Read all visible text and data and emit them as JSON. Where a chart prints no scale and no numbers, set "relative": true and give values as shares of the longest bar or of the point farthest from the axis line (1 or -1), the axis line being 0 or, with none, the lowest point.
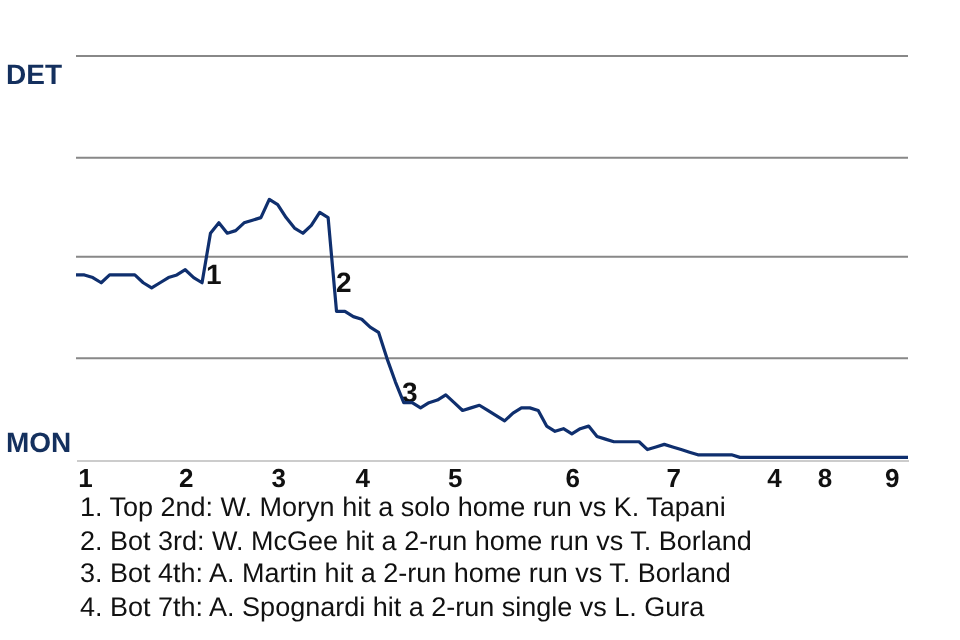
{
  "chart_data": {
    "type": "line",
    "relative": true,
    "categories": [
      null,
      "1",
      null,
      null,
      null,
      null,
      null,
      null,
      null,
      null,
      null,
      null,
      null,
      "2",
      null,
      null,
      null,
      null,
      null,
      null,
      null,
      null,
      null,
      null,
      "3",
      null,
      null,
      null,
      null,
      null,
      null,
      null,
      null,
      null,
      "4",
      null,
      null,
      null,
      null,
      null,
      null,
      null,
      null,
      null,
      null,
      "5",
      null,
      null,
      null,
      null,
      null,
      null,
      null,
      null,
      null,
      null,
      null,
      null,
      null,
      "6",
      null,
      null,
      null,
      null,
      null,
      null,
      null,
      null,
      null,
      null,
      null,
      "7",
      null,
      null,
      null,
      null,
      null,
      null,
      null,
      null,
      null,
      null,
      null,
      "4",
      null,
      null,
      null,
      null,
      null,
      "8",
      null,
      null,
      null,
      null,
      null,
      null,
      null,
      "9",
      null,
      null
    ],
    "series": [
      {
        "color": "#0f2f6e",
        "values": [
          0.71,
          0.71,
          0.7,
          0.68,
          0.71,
          0.71,
          0.71,
          0.71,
          0.68,
          0.66,
          0.68,
          0.7,
          0.71,
          0.73,
          0.7,
          0.68,
          0.87,
          0.91,
          0.87,
          0.88,
          0.91,
          0.92,
          0.93,
          1,
          0.98,
          0.93,
          0.89,
          0.87,
          0.9,
          0.95,
          0.93,
          0.57,
          0.57,
          0.55,
          0.54,
          0.51,
          0.49,
          0.39,
          0.3,
          0.22,
          0.22,
          0.2,
          0.22,
          0.23,
          0.25,
          0.22,
          0.19,
          0.2,
          0.21,
          0.19,
          0.17,
          0.15,
          0.18,
          0.2,
          0.2,
          0.19,
          0.13,
          0.11,
          0.12,
          0.1,
          0.12,
          0.13,
          0.09,
          0.08,
          0.07,
          0.07,
          0.07,
          0.07,
          0.04,
          0.05,
          0.06,
          0.05,
          0.04,
          0.03,
          0.02,
          0.02,
          0.02,
          0.02,
          0.02,
          0.01,
          0.01,
          0.01,
          0.01,
          0.01,
          0.01,
          0.01,
          0.01,
          0.01,
          0.01,
          0.01,
          0.01,
          0.01,
          0.01,
          0.01,
          0.01,
          0.01,
          0.01,
          0.01,
          0.01,
          0.01
        ]
      }
    ],
    "ref_lines": [
      {
        "axis": "y",
        "value": 0.39,
        "color": "#888888"
      },
      {
        "axis": "y",
        "value": 0.78,
        "color": "#888888"
      },
      {
        "axis": "y",
        "value": 1.16,
        "color": "#888888"
      },
      {
        "axis": "y",
        "value": 1.55,
        "color": "#888888"
      }
    ],
    "annotations": [
      "DET",
      "MON",
      "1",
      "2",
      "3",
      "1. Top 2nd: W. Moryn hit a solo home run vs K. Tapani",
      "2. Bot 3rd: W. McGee hit a 2-run home run vs T. Borland",
      "3. Bot 4th: A. Martin hit a 2-run home run vs T. Borland",
      "4. Bot 7th: A. Spognardi hit a 2-run single vs L. Gura"
    ]
  }
}
